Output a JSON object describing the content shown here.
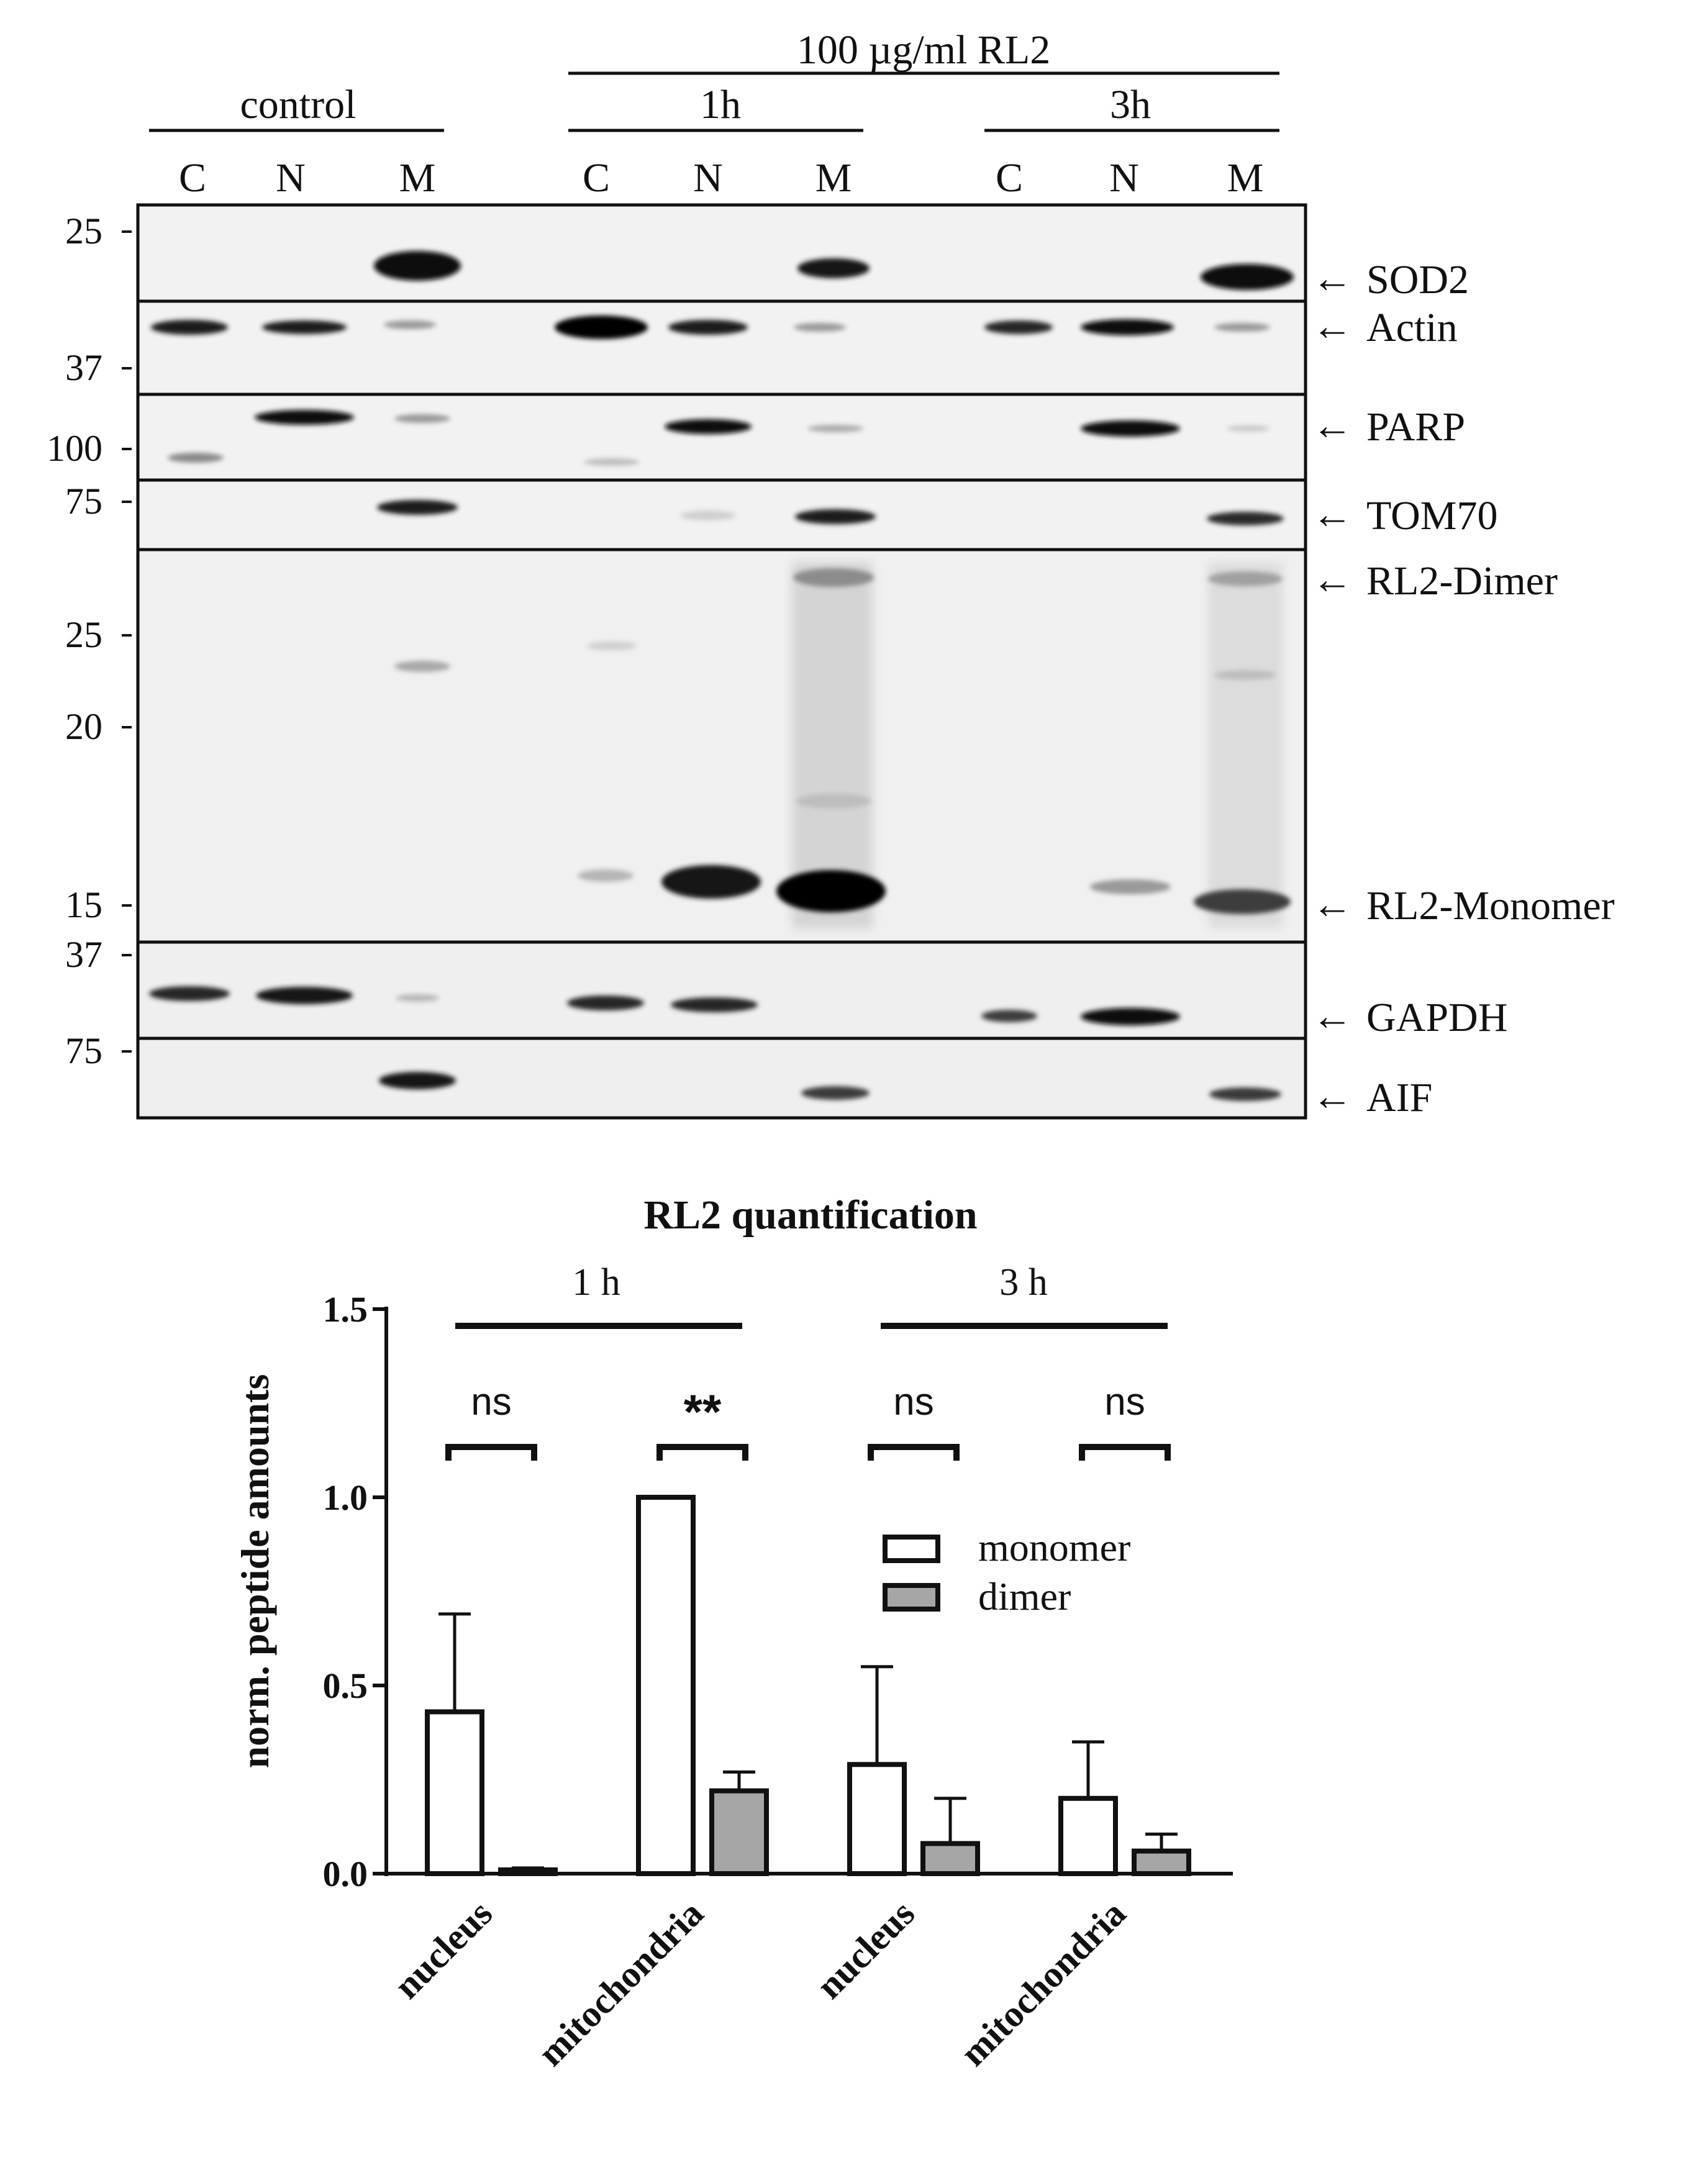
{
  "blot": {
    "treatment_label": "100 µg/ml RL2",
    "groups": [
      {
        "label": "control",
        "lanes": [
          "C",
          "N",
          "M"
        ]
      },
      {
        "label": "1h",
        "lanes": [
          "C",
          "N",
          "M"
        ]
      },
      {
        "label": "3h",
        "lanes": [
          "C",
          "N",
          "M"
        ]
      }
    ],
    "panels": [
      {
        "protein": "SOD2",
        "mw_markers": [
          "25"
        ]
      },
      {
        "protein": "Actin",
        "mw_markers": [
          "37"
        ]
      },
      {
        "protein": "PARP",
        "mw_markers": [
          "100"
        ]
      },
      {
        "protein": "TOM70",
        "mw_markers": [
          "75"
        ]
      },
      {
        "protein": "RL2-Dimer",
        "mw_markers": [
          "25",
          "20"
        ]
      },
      {
        "protein": "RL2-Monomer",
        "mw_markers": [
          "15"
        ]
      },
      {
        "protein": "GAPDH",
        "mw_markers": [
          "37"
        ]
      },
      {
        "protein": "AIF",
        "mw_markers": [
          "75"
        ]
      }
    ],
    "arrow_glyph": "←"
  },
  "chart_data": {
    "type": "bar",
    "title": "RL2 quantification",
    "ylabel": "norm. peptide amounts",
    "xlabel": "",
    "ylim": [
      0,
      1.5
    ],
    "yticks": [
      "0.0",
      "0.5",
      "1.0",
      "1.5"
    ],
    "time_groups": [
      "1 h",
      "3 h"
    ],
    "categories": [
      "nucleus",
      "mitochondria",
      "nucleus",
      "mitochondria"
    ],
    "series": [
      {
        "name": "monomer",
        "color": "#ffffff",
        "values": [
          0.43,
          1.0,
          0.29,
          0.2
        ],
        "errors": [
          0.26,
          0.0,
          0.26,
          0.15
        ]
      },
      {
        "name": "dimer",
        "color": "#a6a6a6",
        "values": [
          0.01,
          0.22,
          0.08,
          0.06
        ],
        "errors": [
          0.005,
          0.05,
          0.12,
          0.045
        ]
      }
    ],
    "significance": [
      "ns",
      "**",
      "ns",
      "ns"
    ],
    "legend_position": "right",
    "grid": false
  }
}
